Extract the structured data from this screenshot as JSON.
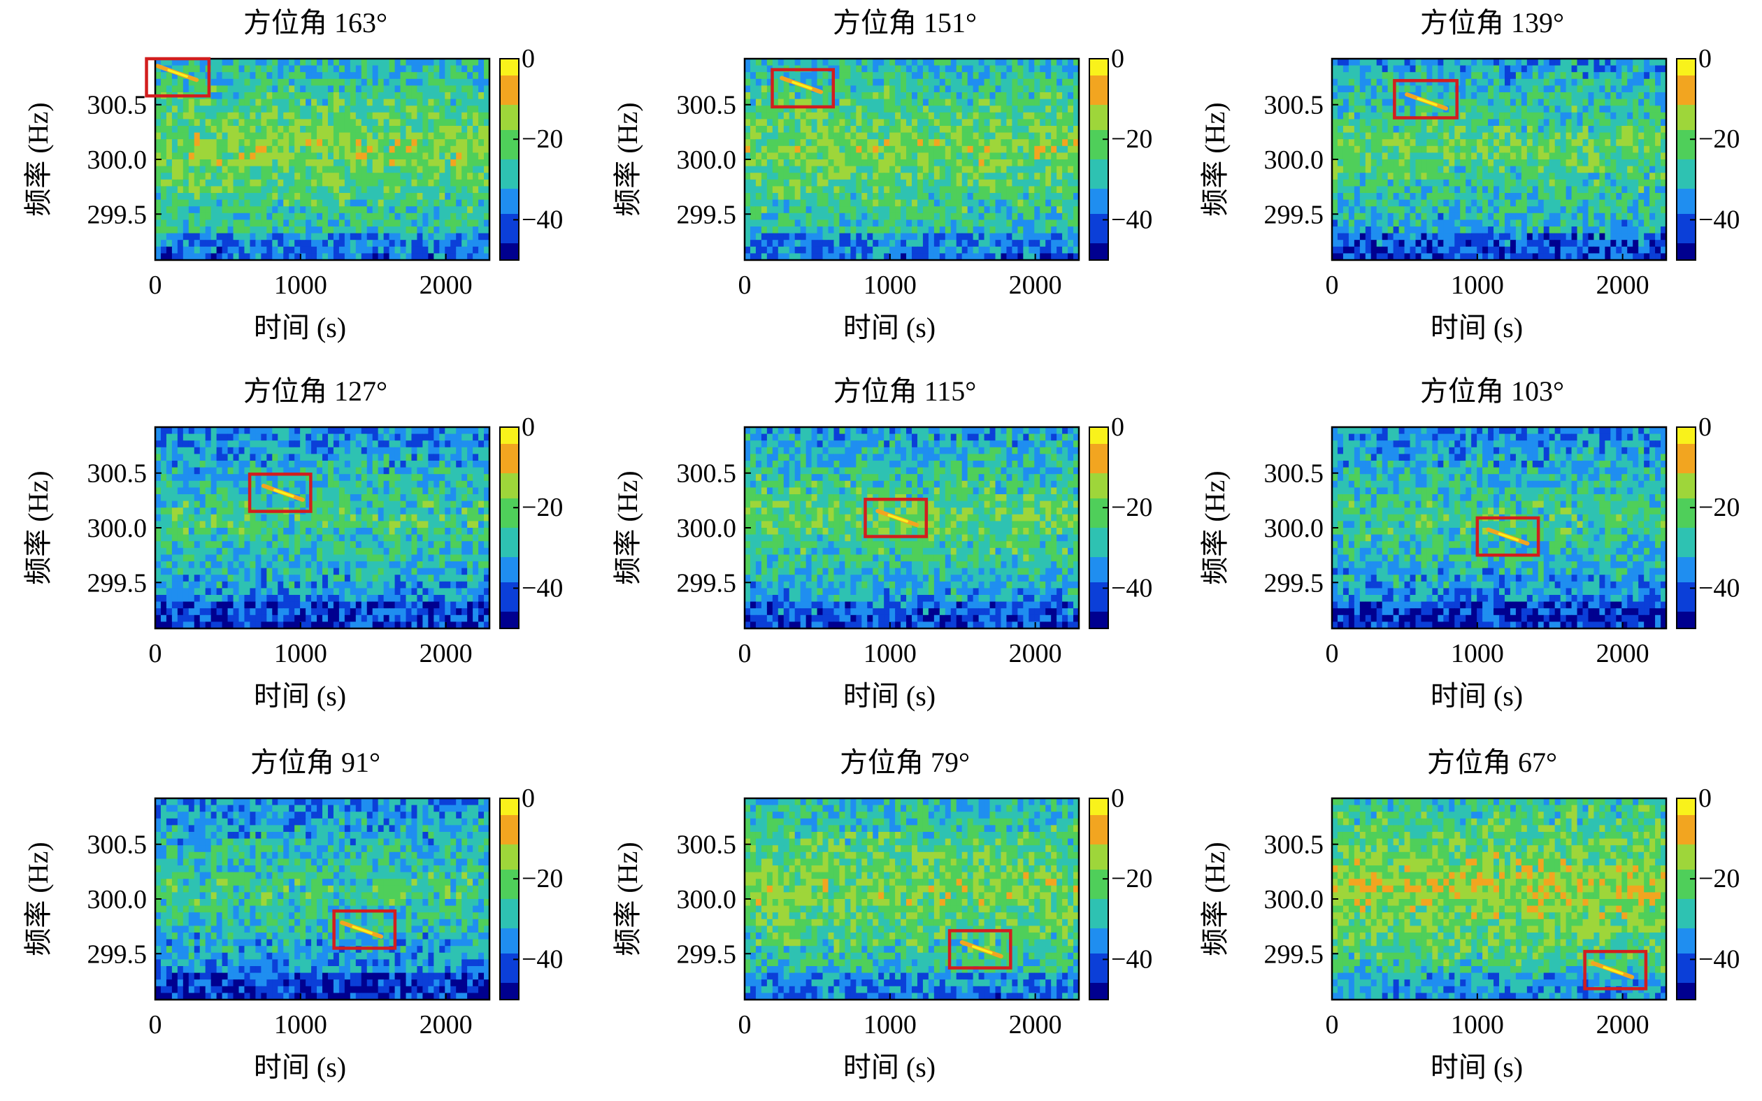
{
  "colors": {
    "box": "#d21e1e",
    "colormap": [
      "#00008f",
      "#0b3fd8",
      "#1f8ef0",
      "#2ec2b2",
      "#4fcf5a",
      "#9ed63a",
      "#f2a520",
      "#f9f21b"
    ]
  },
  "chart_data": [
    {
      "type": "heatmap",
      "title": "方位角 163°",
      "xlabel": "时间 (s)",
      "ylabel": "频率 (Hz)",
      "xlim": [
        0,
        2300
      ],
      "ylim": [
        299.08,
        300.92
      ],
      "xticks": [
        "0",
        "1000",
        "2000"
      ],
      "yticks": [
        "299.5",
        "300.0",
        "300.5"
      ],
      "colorbar": {
        "range": [
          -50,
          0
        ],
        "ticks": [
          "0",
          "−20",
          "−40"
        ]
      },
      "highlight_box": {
        "x": [
          -60,
          370
        ],
        "y": [
          300.58,
          300.92
        ]
      },
      "signal": {
        "t": 150,
        "f": 300.79
      },
      "background_level": "mid-high"
    },
    {
      "type": "heatmap",
      "title": "方位角 151°",
      "xlabel": "时间 (s)",
      "ylabel": "频率 (Hz)",
      "xlim": [
        0,
        2300
      ],
      "ylim": [
        299.08,
        300.92
      ],
      "xticks": [
        "0",
        "1000",
        "2000"
      ],
      "yticks": [
        "299.5",
        "300.0",
        "300.5"
      ],
      "colorbar": {
        "range": [
          -50,
          0
        ],
        "ticks": [
          "0",
          "−20",
          "−40"
        ]
      },
      "highlight_box": {
        "x": [
          190,
          610
        ],
        "y": [
          300.48,
          300.82
        ]
      },
      "signal": {
        "t": 390,
        "f": 300.68
      },
      "background_level": "mid-high"
    },
    {
      "type": "heatmap",
      "title": "方位角 139°",
      "xlabel": "时间 (s)",
      "ylabel": "频率 (Hz)",
      "xlim": [
        0,
        2300
      ],
      "ylim": [
        299.08,
        300.92
      ],
      "xticks": [
        "0",
        "1000",
        "2000"
      ],
      "yticks": [
        "299.5",
        "300.0",
        "300.5"
      ],
      "colorbar": {
        "range": [
          -50,
          0
        ],
        "ticks": [
          "0",
          "−20",
          "−40"
        ]
      },
      "highlight_box": {
        "x": [
          430,
          860
        ],
        "y": [
          300.38,
          300.72
        ]
      },
      "signal": {
        "t": 650,
        "f": 300.53
      },
      "background_level": "mid"
    },
    {
      "type": "heatmap",
      "title": "方位角 127°",
      "xlabel": "时间 (s)",
      "ylabel": "频率 (Hz)",
      "xlim": [
        0,
        2300
      ],
      "ylim": [
        299.08,
        300.92
      ],
      "xticks": [
        "0",
        "1000",
        "2000"
      ],
      "yticks": [
        "299.5",
        "300.0",
        "300.5"
      ],
      "colorbar": {
        "range": [
          -50,
          0
        ],
        "ticks": [
          "0",
          "−20",
          "−40"
        ]
      },
      "highlight_box": {
        "x": [
          650,
          1070
        ],
        "y": [
          300.15,
          300.49
        ]
      },
      "signal": {
        "t": 880,
        "f": 300.32
      },
      "background_level": "mid-low"
    },
    {
      "type": "heatmap",
      "title": "方位角 115°",
      "xlabel": "时间 (s)",
      "ylabel": "频率 (Hz)",
      "xlim": [
        0,
        2300
      ],
      "ylim": [
        299.08,
        300.92
      ],
      "xticks": [
        "0",
        "1000",
        "2000"
      ],
      "yticks": [
        "299.5",
        "300.0",
        "300.5"
      ],
      "colorbar": {
        "range": [
          -50,
          0
        ],
        "ticks": [
          "0",
          "−20",
          "−40"
        ]
      },
      "highlight_box": {
        "x": [
          830,
          1250
        ],
        "y": [
          299.92,
          300.26
        ]
      },
      "signal": {
        "t": 1050,
        "f": 300.09
      },
      "background_level": "mid"
    },
    {
      "type": "heatmap",
      "title": "方位角 103°",
      "xlabel": "时间 (s)",
      "ylabel": "频率 (Hz)",
      "xlim": [
        0,
        2300
      ],
      "ylim": [
        299.08,
        300.92
      ],
      "xticks": [
        "0",
        "1000",
        "2000"
      ],
      "yticks": [
        "299.5",
        "300.0",
        "300.5"
      ],
      "colorbar": {
        "range": [
          -50,
          0
        ],
        "ticks": [
          "0",
          "−20",
          "−40"
        ]
      },
      "highlight_box": {
        "x": [
          1000,
          1420
        ],
        "y": [
          299.75,
          300.09
        ]
      },
      "signal": {
        "t": 1210,
        "f": 299.92
      },
      "background_level": "mid-low"
    },
    {
      "type": "heatmap",
      "title": "方位角 91°",
      "xlabel": "时间 (s)",
      "ylabel": "频率 (Hz)",
      "xlim": [
        0,
        2300
      ],
      "ylim": [
        299.08,
        300.92
      ],
      "xticks": [
        "0",
        "1000",
        "2000"
      ],
      "yticks": [
        "299.5",
        "300.0",
        "300.5"
      ],
      "colorbar": {
        "range": [
          -50,
          0
        ],
        "ticks": [
          "0",
          "−20",
          "−40"
        ]
      },
      "highlight_box": {
        "x": [
          1230,
          1650
        ],
        "y": [
          299.55,
          299.89
        ]
      },
      "signal": {
        "t": 1420,
        "f": 299.72
      },
      "background_level": "mid-low"
    },
    {
      "type": "heatmap",
      "title": "方位角 79°",
      "xlabel": "时间 (s)",
      "ylabel": "频率 (Hz)",
      "xlim": [
        0,
        2300
      ],
      "ylim": [
        299.08,
        300.92
      ],
      "xticks": [
        "0",
        "1000",
        "2000"
      ],
      "yticks": [
        "299.5",
        "300.0",
        "300.5"
      ],
      "colorbar": {
        "range": [
          -50,
          0
        ],
        "ticks": [
          "0",
          "−20",
          "−40"
        ]
      },
      "highlight_box": {
        "x": [
          1410,
          1830
        ],
        "y": [
          299.37,
          299.71
        ]
      },
      "signal": {
        "t": 1630,
        "f": 299.54
      },
      "background_level": "mid-high"
    },
    {
      "type": "heatmap",
      "title": "方位角 67°",
      "xlabel": "时间 (s)",
      "ylabel": "频率 (Hz)",
      "xlim": [
        0,
        2300
      ],
      "ylim": [
        299.08,
        300.92
      ],
      "xticks": [
        "0",
        "1000",
        "2000"
      ],
      "yticks": [
        "299.5",
        "300.0",
        "300.5"
      ],
      "colorbar": {
        "range": [
          -50,
          0
        ],
        "ticks": [
          "0",
          "−20",
          "−40"
        ]
      },
      "highlight_box": {
        "x": [
          1740,
          2160
        ],
        "y": [
          299.18,
          299.52
        ]
      },
      "signal": {
        "t": 1930,
        "f": 299.35
      },
      "background_level": "high"
    }
  ]
}
